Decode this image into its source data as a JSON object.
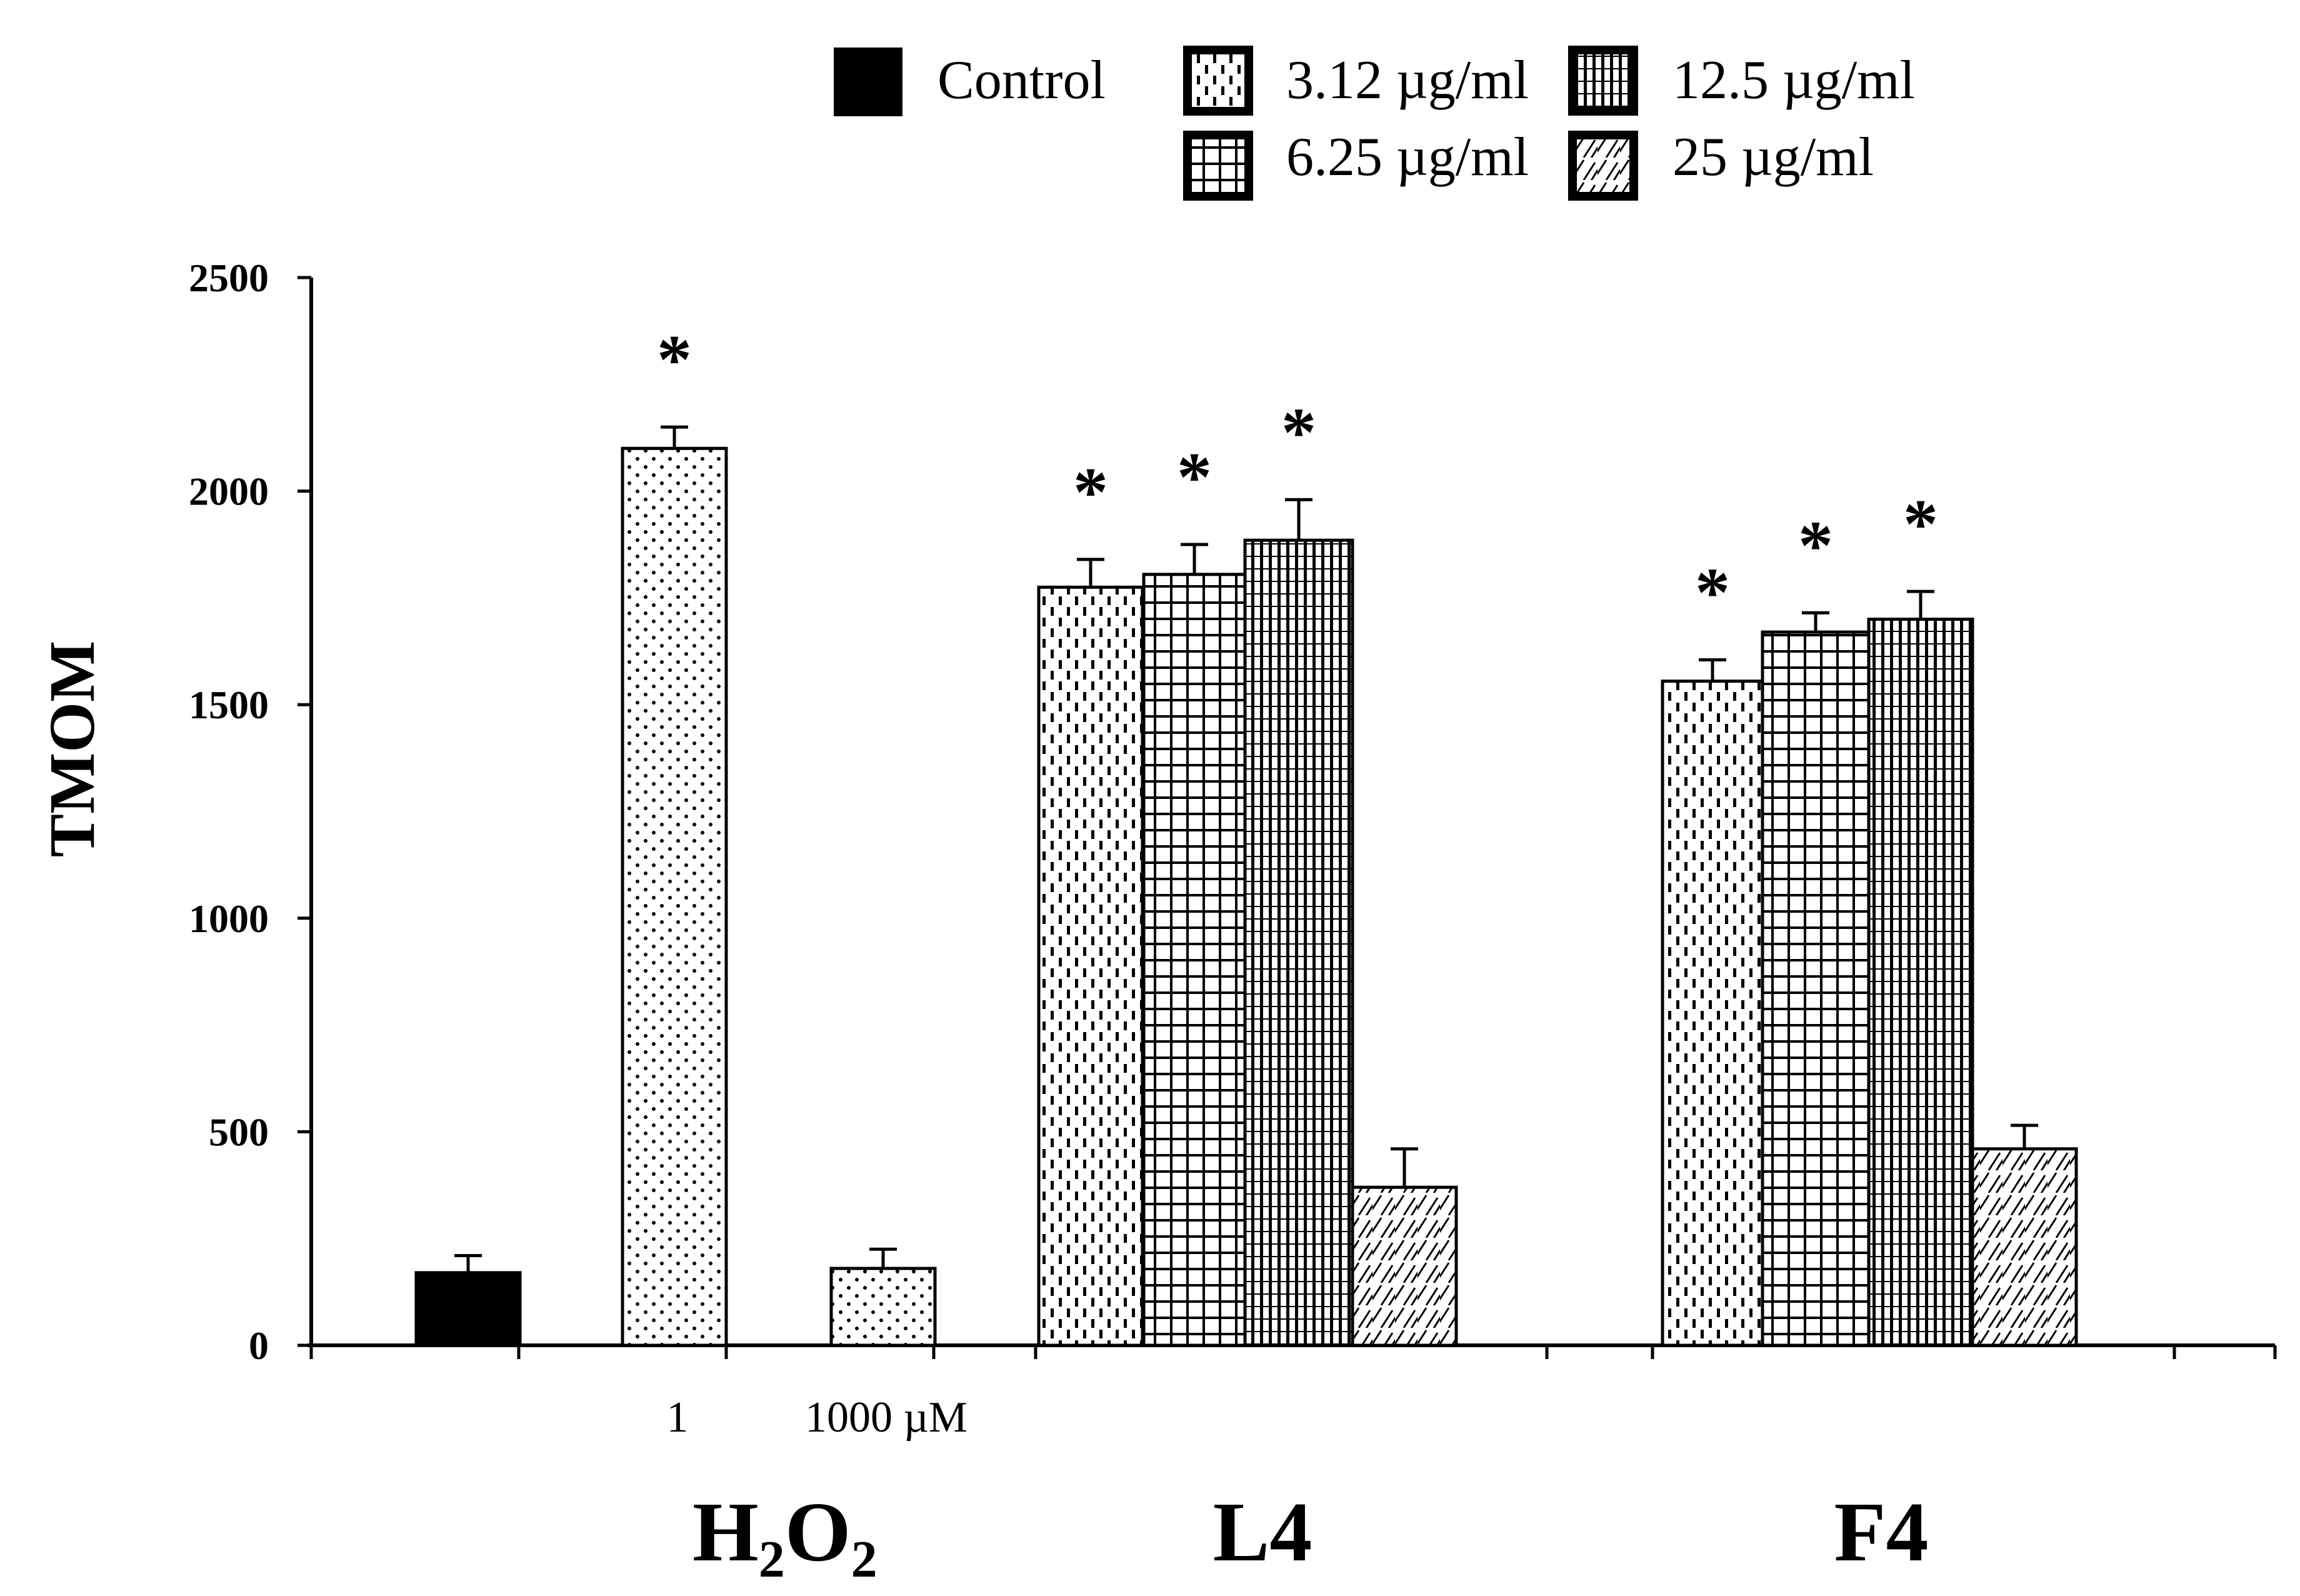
{
  "chart_data": {
    "type": "bar",
    "ylabel": "TMOM",
    "ylim": [
      0,
      2500
    ],
    "yticks": [
      "0",
      "500",
      "1000",
      "1500",
      "2000",
      "2500"
    ],
    "legend": {
      "placement": "top",
      "entries": [
        {
          "name": "Control",
          "pattern": "solid"
        },
        {
          "name": "3.12 µg/ml",
          "pattern": "dash"
        },
        {
          "name": "12.5 µg/ml",
          "pattern": "vlines"
        },
        {
          "name": "6.25 µg/ml",
          "pattern": "grid"
        },
        {
          "name": "25 µg/ml",
          "pattern": "diag"
        }
      ]
    },
    "group_labels": [
      {
        "id": "h2o2",
        "main": "H",
        "sub1": "2",
        "mid": "O",
        "sub2": "2"
      },
      {
        "id": "l4",
        "main": "L4"
      },
      {
        "id": "f4",
        "main": "F4"
      }
    ],
    "category_labels": [
      "1",
      "1000 µM"
    ],
    "significance_marker": "*",
    "bars": [
      {
        "group": "Control",
        "label": "Control",
        "pattern": "solid",
        "value": 170,
        "error": 40,
        "significant": false
      },
      {
        "group": "H2O2",
        "label": "1",
        "pattern": "dots",
        "value": 2100,
        "error": 50,
        "significant": true
      },
      {
        "group": "H2O2",
        "label": "1000 µM",
        "pattern": "dots",
        "value": 180,
        "error": 45,
        "significant": false
      },
      {
        "group": "L4",
        "label": "3.12 µg/ml",
        "pattern": "dash",
        "value": 1775,
        "error": 65,
        "significant": true
      },
      {
        "group": "L4",
        "label": "6.25 µg/ml",
        "pattern": "grid",
        "value": 1805,
        "error": 70,
        "significant": true
      },
      {
        "group": "L4",
        "label": "12.5 µg/ml",
        "pattern": "vlines",
        "value": 1885,
        "error": 95,
        "significant": true
      },
      {
        "group": "L4",
        "label": "25 µg/ml",
        "pattern": "diag",
        "value": 370,
        "error": 90,
        "significant": false
      },
      {
        "group": "F4",
        "label": "3.12 µg/ml",
        "pattern": "dash",
        "value": 1555,
        "error": 50,
        "significant": true
      },
      {
        "group": "F4",
        "label": "6.25 µg/ml",
        "pattern": "grid",
        "value": 1670,
        "error": 45,
        "significant": true
      },
      {
        "group": "F4",
        "label": "12.5 µg/ml",
        "pattern": "vlines",
        "value": 1700,
        "error": 65,
        "significant": true
      },
      {
        "group": "F4",
        "label": "25 µg/ml",
        "pattern": "diag",
        "value": 460,
        "error": 55,
        "significant": false
      }
    ]
  }
}
